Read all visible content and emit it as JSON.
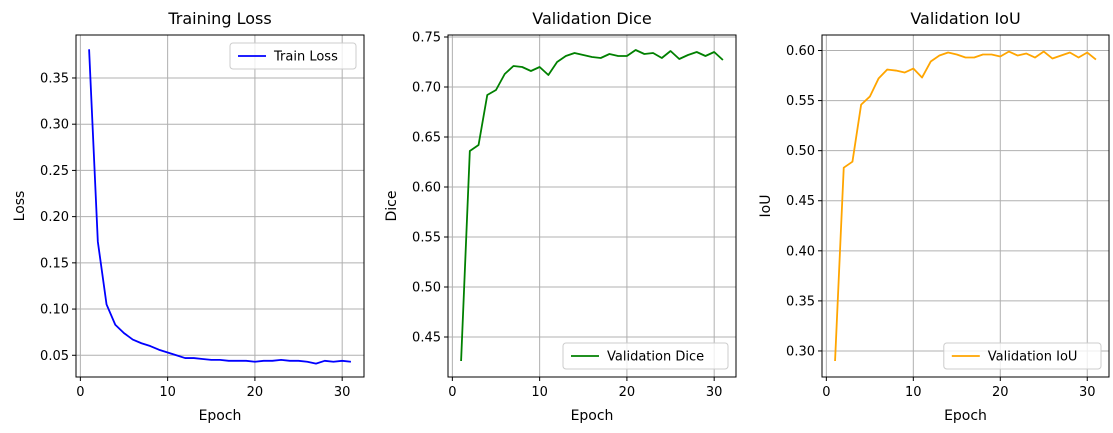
{
  "chart_data": [
    {
      "type": "line",
      "title": "Training Loss",
      "xlabel": "Epoch",
      "ylabel": "Loss",
      "xlim": [
        -0.5,
        32.5
      ],
      "ylim": [
        0.0265,
        0.3965
      ],
      "xticks": [
        0,
        10,
        20,
        30
      ],
      "yticks": [
        0.05,
        0.1,
        0.15,
        0.2,
        0.25,
        0.3,
        0.35
      ],
      "ytick_labels": [
        "0.05",
        "0.10",
        "0.15",
        "0.20",
        "0.25",
        "0.30",
        "0.35"
      ],
      "grid": true,
      "legend": "upper-right",
      "series": [
        {
          "name": "Train Loss",
          "color": "#0000ff",
          "x": [
            1,
            2,
            3,
            4,
            5,
            6,
            7,
            8,
            9,
            10,
            11,
            12,
            13,
            14,
            15,
            16,
            17,
            18,
            19,
            20,
            21,
            22,
            23,
            24,
            25,
            26,
            27,
            28,
            29,
            30,
            31
          ],
          "values": [
            0.381,
            0.173,
            0.105,
            0.083,
            0.074,
            0.067,
            0.063,
            0.06,
            0.056,
            0.053,
            0.05,
            0.047,
            0.047,
            0.046,
            0.045,
            0.045,
            0.044,
            0.044,
            0.044,
            0.043,
            0.044,
            0.044,
            0.045,
            0.044,
            0.044,
            0.043,
            0.041,
            0.044,
            0.043,
            0.044,
            0.043
          ]
        }
      ]
    },
    {
      "type": "line",
      "title": "Validation Dice",
      "xlabel": "Epoch",
      "ylabel": "Dice",
      "xlim": [
        -0.5,
        32.5
      ],
      "ylim": [
        0.41,
        0.752
      ],
      "xticks": [
        0,
        10,
        20,
        30
      ],
      "yticks": [
        0.45,
        0.5,
        0.55,
        0.6,
        0.65,
        0.7,
        0.75
      ],
      "ytick_labels": [
        "0.45",
        "0.50",
        "0.55",
        "0.60",
        "0.65",
        "0.70",
        "0.75"
      ],
      "grid": true,
      "legend": "lower-right",
      "series": [
        {
          "name": "Validation Dice",
          "color": "#008000",
          "x": [
            1,
            2,
            3,
            4,
            5,
            6,
            7,
            8,
            9,
            10,
            11,
            12,
            13,
            14,
            15,
            16,
            17,
            18,
            19,
            20,
            21,
            22,
            23,
            24,
            25,
            26,
            27,
            28,
            29,
            30,
            31
          ],
          "values": [
            0.426,
            0.636,
            0.642,
            0.692,
            0.697,
            0.713,
            0.721,
            0.72,
            0.716,
            0.72,
            0.712,
            0.725,
            0.731,
            0.734,
            0.732,
            0.73,
            0.729,
            0.733,
            0.731,
            0.731,
            0.737,
            0.733,
            0.734,
            0.729,
            0.736,
            0.728,
            0.732,
            0.735,
            0.731,
            0.735,
            0.727
          ]
        }
      ]
    },
    {
      "type": "line",
      "title": "Validation IoU",
      "xlabel": "Epoch",
      "ylabel": "IoU",
      "xlim": [
        -0.5,
        32.5
      ],
      "ylim": [
        0.274,
        0.6155
      ],
      "xticks": [
        0,
        10,
        20,
        30
      ],
      "yticks": [
        0.3,
        0.35,
        0.4,
        0.45,
        0.5,
        0.55,
        0.6
      ],
      "ytick_labels": [
        "0.30",
        "0.35",
        "0.40",
        "0.45",
        "0.50",
        "0.55",
        "0.60"
      ],
      "grid": true,
      "legend": "lower-right",
      "series": [
        {
          "name": "Validation IoU",
          "color": "#ffa500",
          "x": [
            1,
            2,
            3,
            4,
            5,
            6,
            7,
            8,
            9,
            10,
            11,
            12,
            13,
            14,
            15,
            16,
            17,
            18,
            19,
            20,
            21,
            22,
            23,
            24,
            25,
            26,
            27,
            28,
            29,
            30,
            31
          ],
          "values": [
            0.29,
            0.483,
            0.489,
            0.546,
            0.554,
            0.572,
            0.581,
            0.58,
            0.578,
            0.582,
            0.573,
            0.589,
            0.595,
            0.598,
            0.596,
            0.593,
            0.593,
            0.596,
            0.596,
            0.594,
            0.599,
            0.595,
            0.597,
            0.593,
            0.599,
            0.592,
            0.595,
            0.598,
            0.593,
            0.598,
            0.591
          ]
        }
      ]
    }
  ]
}
